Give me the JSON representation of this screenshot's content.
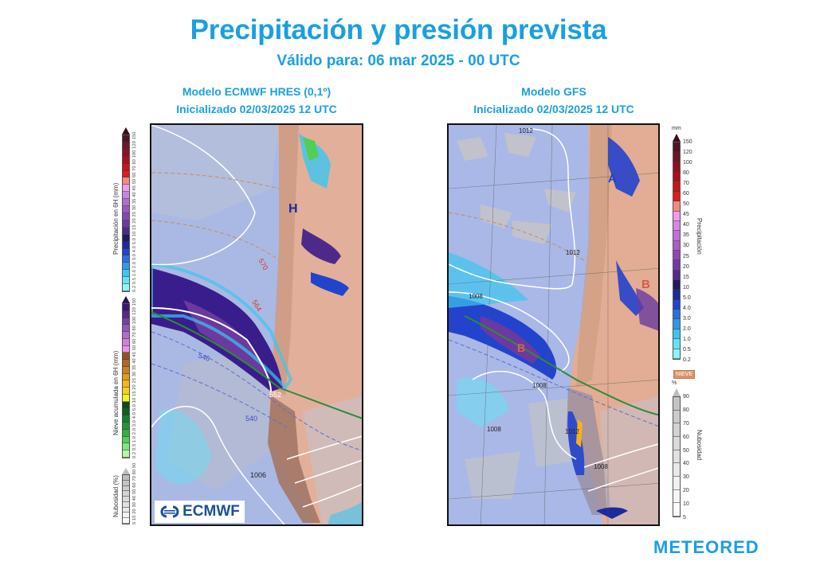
{
  "header": {
    "title": "Precipitación y presión prevista",
    "subtitle": "Válido para: 06 mar 2025 - 00 UTC"
  },
  "panels": {
    "left": {
      "model": "Modelo ECMWF HRES (0,1º)",
      "init": "Inicializado 02/03/2025 12 UTC",
      "logo": "ECMWF",
      "pressure_labels": [
        "H"
      ],
      "contour_labels": [
        "570",
        "564",
        "546",
        "552",
        "540",
        "1006"
      ]
    },
    "right": {
      "model": "Modelo GFS",
      "init": "Inicializado 02/03/2025 12 UTC",
      "pressure_labels": [
        "A",
        "B",
        "B"
      ],
      "contour_labels": [
        "1012",
        "1012",
        "1012",
        "1008",
        "1008",
        "1008",
        "1012",
        "1008"
      ]
    }
  },
  "legend_left": {
    "precip": {
      "title": "Precipitación en 6H (mm)",
      "ticks": "0.2 0.5 1.0 2.0 3.0 4.0 5.0 10 15 20 25 30 35 40 45 50 60 70 80 100 120 150",
      "colors": [
        "#8ff3f7",
        "#63e3f5",
        "#3cc6f0",
        "#2f99e8",
        "#2d6fe0",
        "#2443cc",
        "#1c2a9e",
        "#24195f",
        "#4d2a8a",
        "#6a3aa0",
        "#8446b4",
        "#9a57c2",
        "#b06dd2",
        "#c886e3",
        "#ee9bf0",
        "#f28a80",
        "#e01c1c",
        "#c8141a",
        "#ab0f1c",
        "#8e1022",
        "#6b1629",
        "#4d1526"
      ]
    },
    "snow": {
      "title": "Nieve acumulada en 6H (mm)",
      "ticks": "0.2 0.5 1.0 2.0 3.0 4.0 5.0 10 15 20 25 30 35 40 45 50 60 70 80 100 120 150",
      "colors": [
        "#b8f5a4",
        "#7ee67a",
        "#4fcf55",
        "#33b040",
        "#23963a",
        "#177d2f",
        "#0e5f22",
        "#0c4a1a",
        "#f4f21e",
        "#f5cf1e",
        "#f4b418",
        "#e29a18",
        "#cc7f1c",
        "#b36621",
        "#925020",
        "#f08ef0",
        "#cf7fe0",
        "#b46bd0",
        "#9456bd",
        "#743fa6",
        "#55298c",
        "#3a1670"
      ]
    },
    "cloud": {
      "title": "Nubosidad (%)",
      "ticks": "5 10 20 30 40 50 60 70 80 90",
      "colors": [
        "#fafafa",
        "#f1f1f1",
        "#e9e9e9",
        "#e1e1e1",
        "#dadada",
        "#d2d2d2",
        "#cbcbcb",
        "#c4c4c4",
        "#bdbdbd"
      ]
    }
  },
  "legend_right": {
    "precip": {
      "unit": "mm",
      "title": "Precipitación",
      "labels": [
        "150",
        "120",
        "100",
        "80",
        "70",
        "60",
        "50",
        "45",
        "40",
        "35",
        "30",
        "25",
        "20",
        "15",
        "10",
        "5.0",
        "4.0",
        "3.0",
        "2.0",
        "1.0",
        "0.5",
        "0.2"
      ],
      "colors": [
        "#4d1526",
        "#6b1629",
        "#8e1022",
        "#ab0f1c",
        "#c8141a",
        "#e01c1c",
        "#f28a80",
        "#ee9bf0",
        "#d587e6",
        "#c070d6",
        "#a85ec6",
        "#9049b3",
        "#7439a0",
        "#5a2a8a",
        "#24195f",
        "#1c2a9e",
        "#2443cc",
        "#2d6fe0",
        "#2f99e8",
        "#3cc6f0",
        "#63e3f5",
        "#8ff3f7"
      ]
    },
    "snow_badge": "NIEVE",
    "cloud": {
      "unit": "%",
      "title": "Nubosidad",
      "labels": [
        "90",
        "80",
        "70",
        "60",
        "50",
        "40",
        "30",
        "20",
        "10",
        "5"
      ],
      "colors": [
        "#c4c4c4",
        "#cbcbcb",
        "#d2d2d2",
        "#dadada",
        "#e1e1e1",
        "#e9e9e9",
        "#f1f1f1",
        "#f6f6f6",
        "#fbfbfb"
      ]
    }
  },
  "brand": {
    "name": "METEORED",
    "color": "#1a9fe0"
  }
}
